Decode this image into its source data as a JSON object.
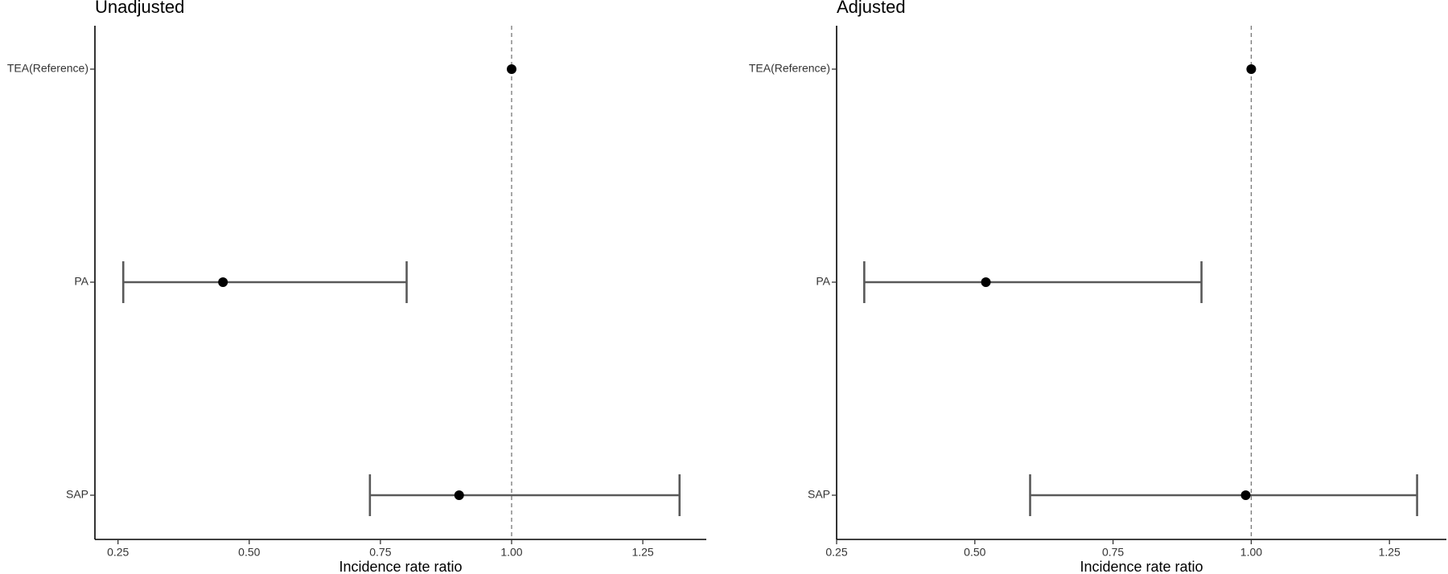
{
  "chart_data": [
    {
      "type": "forest",
      "title": "Unadjusted",
      "xlabel": "Incidence rate ratio",
      "categories": [
        "TEA(Reference)",
        "PA",
        "SAP"
      ],
      "values": [
        1.0,
        0.45,
        0.9
      ],
      "lower": [
        null,
        0.26,
        0.73
      ],
      "upper": [
        null,
        0.8,
        1.32
      ],
      "xlim": [
        0.206,
        1.371
      ],
      "xticks": [
        0.25,
        {
          "value": 0.5,
          "label": "0.50"
        },
        0.75,
        {
          "value": 1,
          "label": "1.00"
        },
        1.25
      ],
      "reference_line": 1,
      "point_color": "#000000",
      "ci_color": "#595959"
    },
    {
      "type": "forest",
      "title": "Adjusted",
      "xlabel": "Incidence rate ratio",
      "categories": [
        "TEA(Reference)",
        "PA",
        "SAP"
      ],
      "values": [
        1.0,
        0.52,
        0.99
      ],
      "lower": [
        null,
        0.3,
        0.6
      ],
      "upper": [
        null,
        0.91,
        1.3
      ],
      "xlim": [
        0.25,
        1.353
      ],
      "xticks": [
        0.25,
        {
          "value": 0.5,
          "label": "0.50"
        },
        0.75,
        {
          "value": 1,
          "label": "1.00"
        },
        1.25
      ],
      "reference_line": 1,
      "point_color": "#000000",
      "ci_color": "#595959"
    }
  ]
}
